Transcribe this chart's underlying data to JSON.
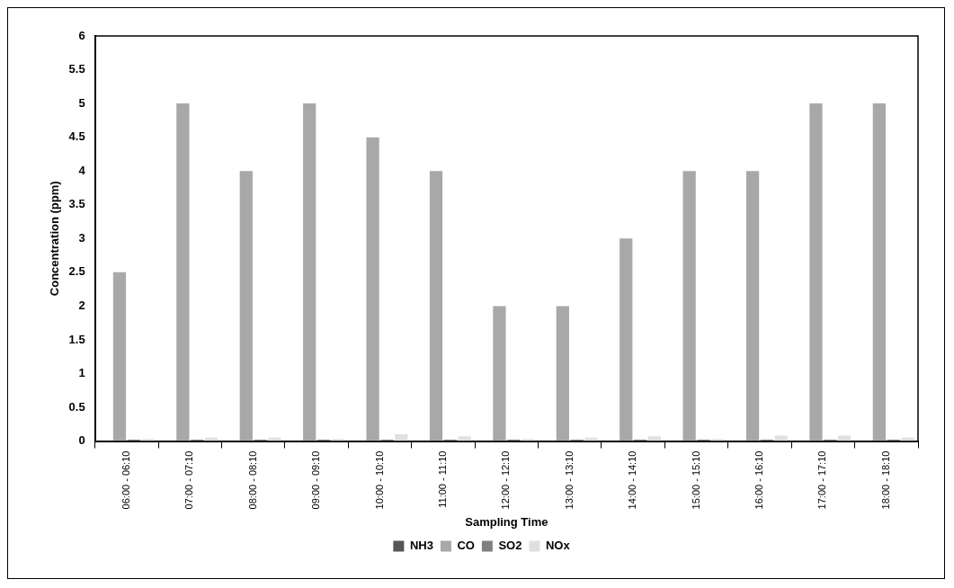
{
  "chart_data": {
    "type": "bar",
    "xlabel": "Sampling Time",
    "ylabel": "Concentration (ppm)",
    "categories": [
      "06:00 - 06:10",
      "07:00 - 07:10",
      "08:00 - 08:10",
      "09:00 - 09:10",
      "10:00 - 10:10",
      "11:00 - 11:10",
      "12:00 - 12:10",
      "13:00 - 13:10",
      "14:00 - 14:10",
      "15:00 - 15:10",
      "16:00 - 16:10",
      "17:00 - 17:10",
      "18:00 - 18:10"
    ],
    "series": [
      {
        "name": "NH3",
        "color": "#555555",
        "values": [
          0,
          0,
          0,
          0,
          0,
          0,
          0,
          0,
          0,
          0,
          0,
          0,
          0
        ]
      },
      {
        "name": "CO",
        "color": "#a8a8a8",
        "values": [
          2.5,
          5,
          4,
          5,
          4.5,
          4,
          2,
          2,
          3,
          4,
          4,
          5,
          5
        ]
      },
      {
        "name": "SO2",
        "color": "#808080",
        "values": [
          0.02,
          0.02,
          0.02,
          0.02,
          0.02,
          0.02,
          0.02,
          0.02,
          0.02,
          0.02,
          0.02,
          0.02,
          0.02
        ]
      },
      {
        "name": "NOx",
        "color": "#e0e0e0",
        "values": [
          0.03,
          0.05,
          0.05,
          0.03,
          0.1,
          0.07,
          0.03,
          0.05,
          0.07,
          0.03,
          0.08,
          0.08,
          0.05
        ]
      }
    ],
    "ylim": [
      0,
      6
    ],
    "yticks": [
      0,
      0.5,
      1,
      1.5,
      2,
      2.5,
      3,
      3.5,
      4,
      4.5,
      5,
      5.5,
      6
    ],
    "grid": false,
    "legend": "bottom"
  }
}
